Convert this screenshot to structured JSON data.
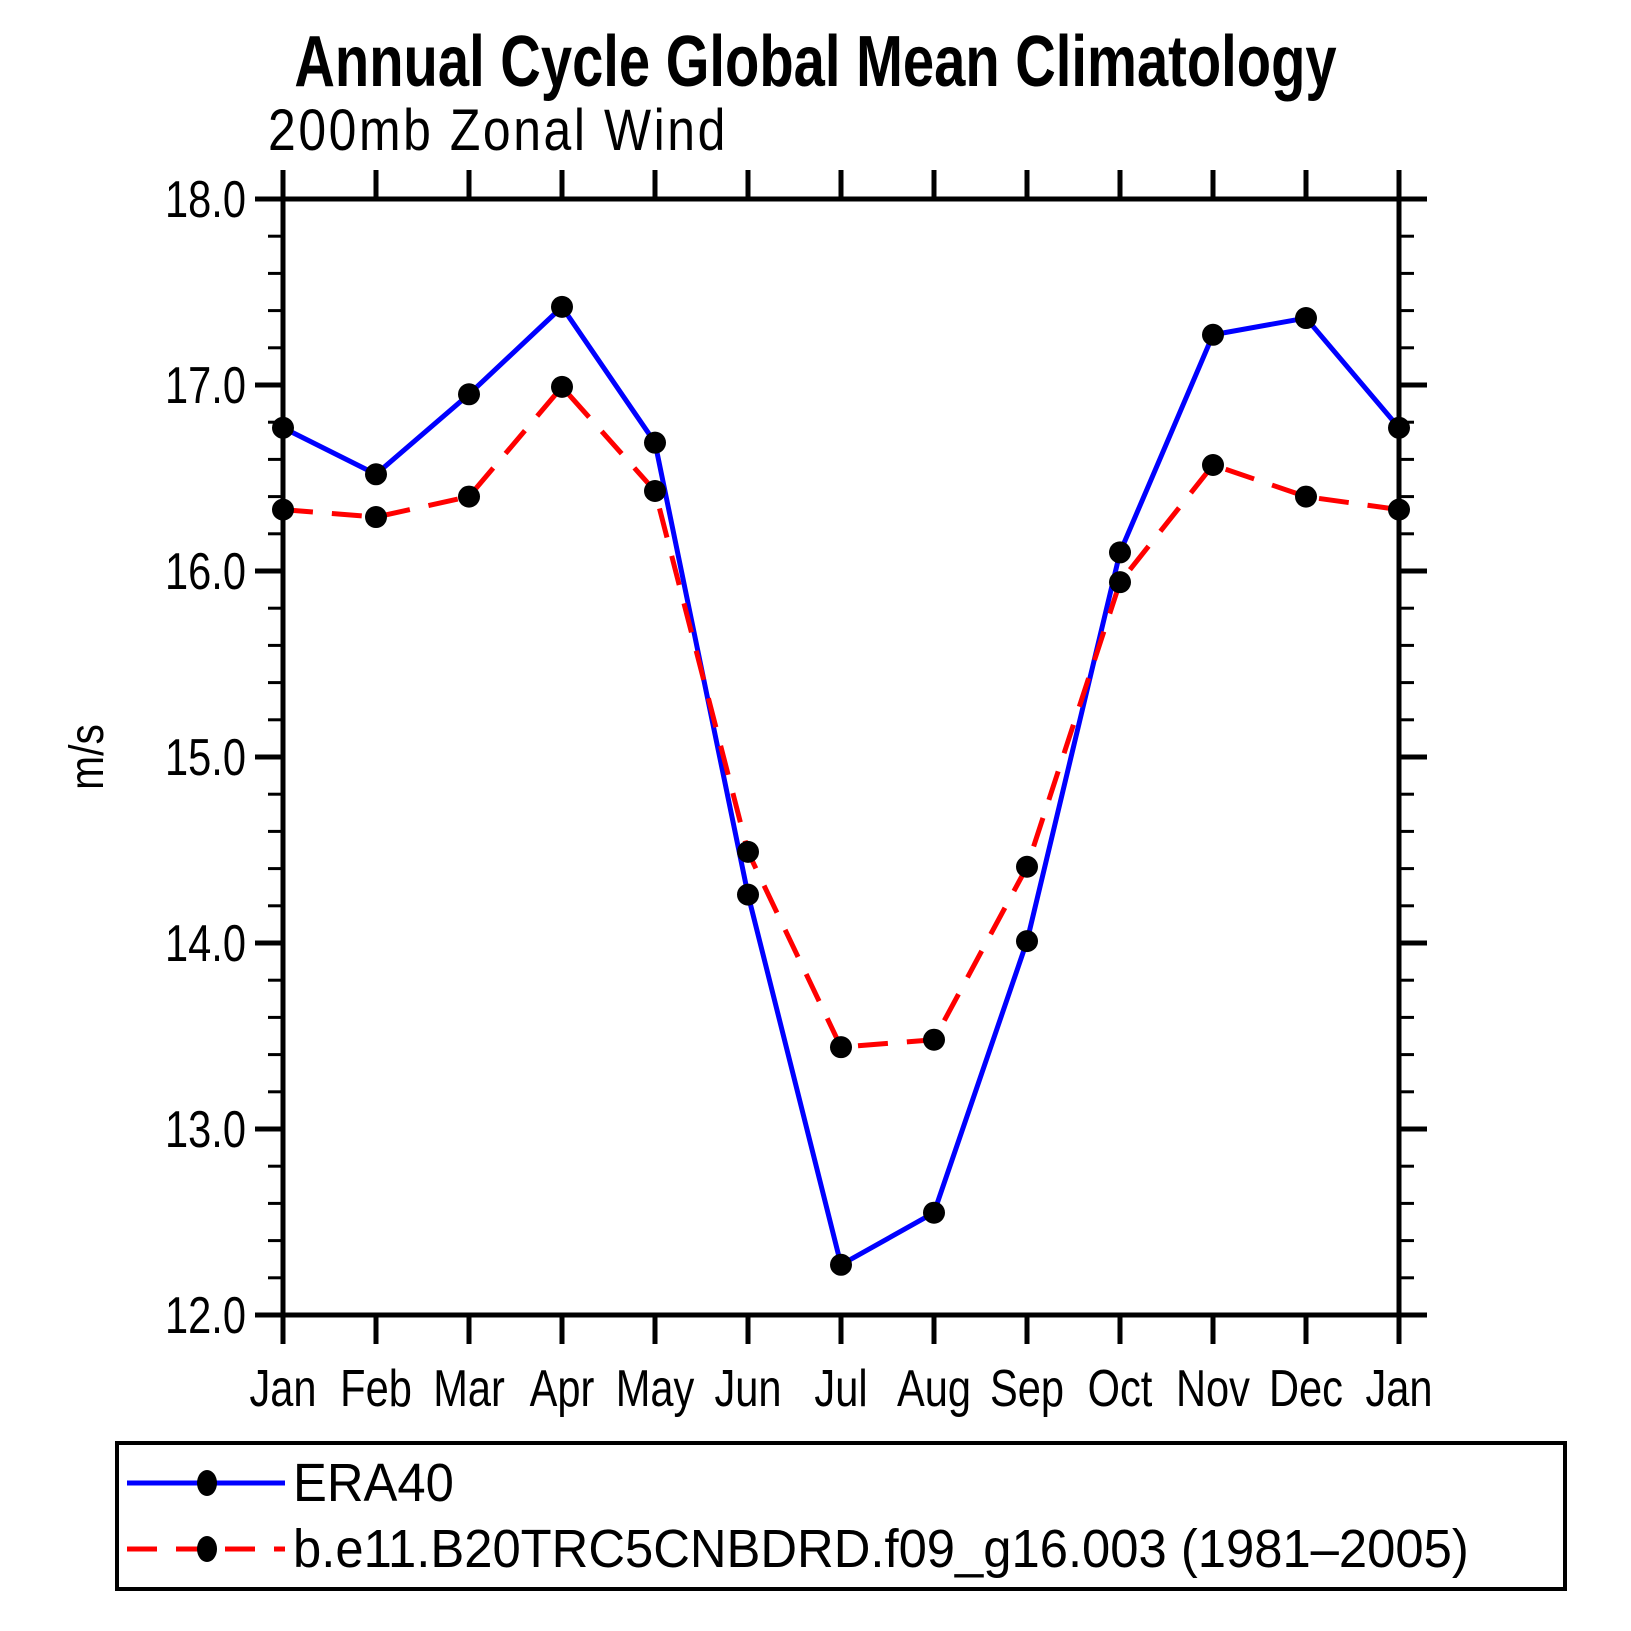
{
  "header": {
    "title": "Annual Cycle Global Mean Climatology",
    "subtitle": "200mb Zonal Wind"
  },
  "chart_data": {
    "type": "line",
    "title": "Annual Cycle Global Mean Climatology",
    "subtitle": "200mb Zonal Wind",
    "ylabel": "m/s",
    "xlabel": "",
    "categories": [
      "Jan",
      "Feb",
      "Mar",
      "Apr",
      "May",
      "Jun",
      "Jul",
      "Aug",
      "Sep",
      "Oct",
      "Nov",
      "Dec",
      "Jan"
    ],
    "series": [
      {
        "name": "ERA40",
        "values": [
          16.77,
          16.52,
          16.95,
          17.42,
          16.69,
          14.26,
          12.27,
          12.55,
          14.01,
          16.1,
          17.27,
          17.36,
          16.77
        ],
        "color": "#0000ff",
        "line_style": "solid",
        "marker": "filled-circle",
        "marker_color": "#000000"
      },
      {
        "name": "b.e11.B20TRC5CNBDRD.f09_g16.003 (1981–2005)",
        "values": [
          16.33,
          16.29,
          16.4,
          16.99,
          16.43,
          14.49,
          13.44,
          13.48,
          14.41,
          15.94,
          16.57,
          16.4,
          16.33
        ],
        "color": "#ff0000",
        "line_style": "dashed",
        "marker": "filled-circle",
        "marker_color": "#000000"
      }
    ],
    "ylim": [
      12.0,
      18.0
    ],
    "y_ticks": [
      18,
      17,
      16,
      15,
      14,
      13,
      12
    ],
    "y_tick_labels": [
      "18.0",
      "17.0",
      "16.0",
      "15.0",
      "14.0",
      "13.0",
      "12.0"
    ],
    "y_minor_step": 0.2,
    "grid": false,
    "legend_position": "bottom",
    "axis_color": "#000000"
  }
}
